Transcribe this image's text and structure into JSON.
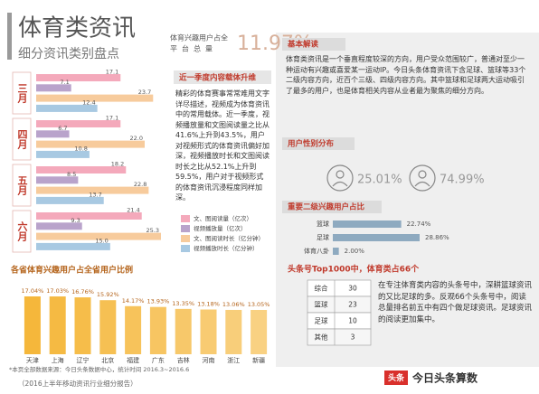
{
  "header": {
    "title": "体育类资讯",
    "subtitle": "细分资讯类别盘点",
    "stat_label": [
      "体育兴趣用户占全",
      "平台总量"
    ],
    "stat_value": "11.97%"
  },
  "content_box": {
    "heading": "近一季度内容载体升维",
    "text": "精彩的体育赛事常常难用文字详尽描述，视频成为体育资讯中的常用载体。近一季度，视频播放量和文图阅读量之比从41.6%上升到43.5%，用户对视频形式的体育资讯偏好加深，视频播放时长和文图阅读时长之比从52.1%上升到59.5%，用户对于视频形式的体育资讯沉浸程度同样加深。"
  },
  "interpretation": {
    "heading": "基本解读",
    "text": "体育类资讯是一个垂直程度较深的方向，用户受众范围较广，普通对至少一种运动有兴趣或喜爱某一运动IP。今日头条体育资讯下含足球、篮球等33个二级内容方向，近百个三级、四级内容方向。其中篮球和足球两大运动吸引了最多的用户，也是体育相关内容从业者最为聚焦的细分方向。"
  },
  "gender": {
    "heading": "用户性别分布",
    "values": [
      "25.01%",
      "74.99%"
    ]
  },
  "top_accounts": {
    "heading": "头条号Top1000中，体育类占66个",
    "rows": [
      [
        "综合",
        "30"
      ],
      [
        "篮球",
        "23"
      ],
      [
        "足球",
        "10"
      ],
      [
        "其他",
        "3"
      ]
    ],
    "text": "在专注体育类内容的头条号中，深耕篮球资讯的又比足球的多。反观66个头条号中，阅读总量排名前五中有四个做足球资讯。足球资讯的阅读更加集中。"
  },
  "footnote": [
    "*本页全部数据来源：今日头条数据中心，统计时间 2016.3~2016.6",
    "（2016上半年移动资讯行业细分报告）"
  ],
  "footer": {
    "logo": "头条",
    "brand": "今日头条算数"
  },
  "chart_data": [
    {
      "type": "hbar",
      "categories": [
        "三月",
        "四月",
        "五月",
        "六月"
      ],
      "series": [
        {
          "name": "文、图阅读量（亿次）",
          "color": "#f4a9bb",
          "values": [
            17.1,
            17.1,
            18.2,
            21.4
          ],
          "value_labels": [
            "17.1",
            "17.1",
            "18.2",
            "21.4"
          ]
        },
        {
          "name": "视频播放量（亿次）",
          "color": "#b9a3cb",
          "values": [
            7.1,
            6.7,
            8.5,
            9.3
          ],
          "value_labels": [
            "7.1",
            "6.7",
            "8.5",
            "9.3"
          ]
        },
        {
          "name": "文、图阅读时长（亿分钟）",
          "color": "#f7cb9c",
          "values": [
            23.7,
            22.0,
            22.8,
            25.3
          ],
          "value_labels": [
            "23.7",
            "22.0",
            "22.8",
            "25.3"
          ]
        },
        {
          "name": "视频播放时长（亿分钟）",
          "color": "#a8c9e2",
          "values": [
            12.4,
            10.8,
            13.7,
            15.0
          ],
          "value_labels": [
            "12.4",
            "10.8",
            "13.7",
            "15.0"
          ]
        }
      ]
    },
    {
      "type": "bar",
      "title": "各省体育兴趣用户占全省用户比例",
      "categories": [
        "天津",
        "上海",
        "辽宁",
        "北京",
        "福建",
        "广东",
        "吉林",
        "河南",
        "浙江",
        "新疆"
      ],
      "values": [
        17.04,
        17.03,
        16.76,
        15.92,
        14.17,
        13.93,
        13.35,
        13.18,
        13.06,
        13.05
      ],
      "value_labels": [
        "17.04%",
        "17.03%",
        "16.76%",
        "15.92%",
        "14.17%",
        "13.93%",
        "13.35%",
        "13.18%",
        "13.06%",
        "13.05%"
      ],
      "color": "#f5b73b"
    },
    {
      "type": "hbar",
      "title": "重要二级兴趣用户占比",
      "categories": [
        "篮球",
        "足球",
        "体育八卦"
      ],
      "values": [
        22.74,
        28.86,
        2.0
      ],
      "value_labels": [
        "22.74%",
        "28.86%",
        "2.00%"
      ],
      "color": "#8eaac0"
    }
  ]
}
